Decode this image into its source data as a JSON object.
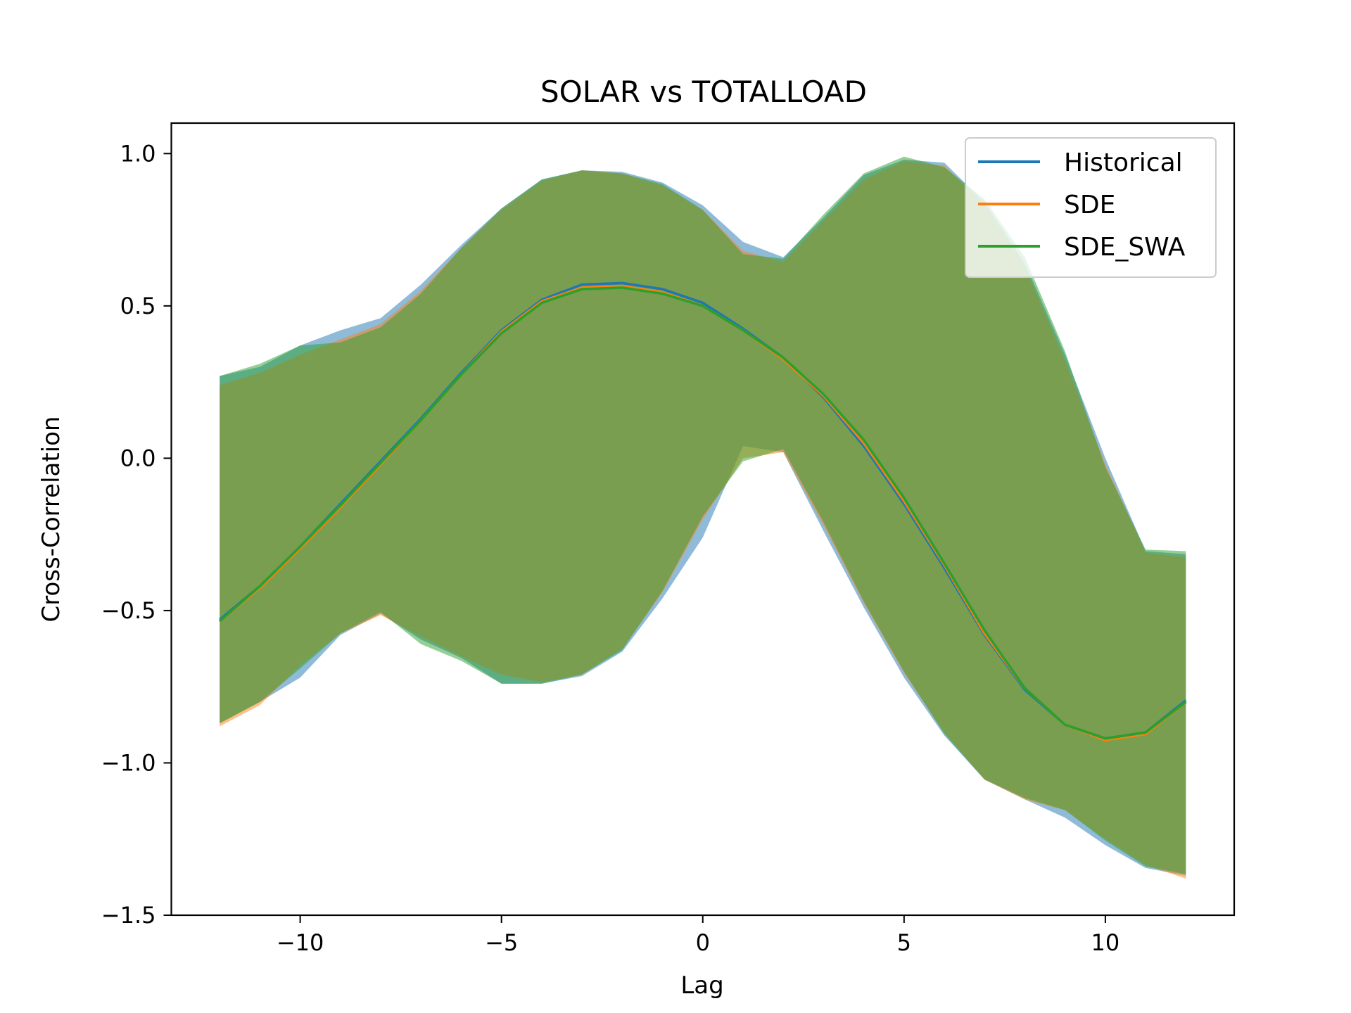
{
  "chart_data": {
    "type": "line",
    "title": "SOLAR vs TOTALLOAD",
    "xlabel": "Lag",
    "ylabel": "Cross-Correlation",
    "xlim": [
      -13.2,
      13.2
    ],
    "ylim": [
      -1.5,
      1.1
    ],
    "xticks": [
      -10,
      -5,
      0,
      5,
      10
    ],
    "xtick_labels": [
      "−10",
      "−5",
      "0",
      "5",
      "10"
    ],
    "yticks": [
      -1.5,
      -1.0,
      -0.5,
      0.0,
      0.5,
      1.0
    ],
    "ytick_labels": [
      "−1.5",
      "−1.0",
      "−0.5",
      "0.0",
      "0.5",
      "1.0"
    ],
    "grid": false,
    "legend_position": "top-right",
    "x": [
      -12,
      -11,
      -10,
      -9,
      -8,
      -7,
      -6,
      -5,
      -4,
      -3,
      -2,
      -1,
      0,
      1,
      2,
      3,
      4,
      5,
      6,
      7,
      8,
      9,
      10,
      11,
      12
    ],
    "series": [
      {
        "name": "Historical",
        "color": "#1f77b4",
        "mean": [
          -0.53,
          -0.42,
          -0.29,
          -0.15,
          -0.01,
          0.13,
          0.28,
          0.42,
          0.52,
          0.57,
          0.575,
          0.555,
          0.51,
          0.425,
          0.33,
          0.2,
          0.04,
          -0.15,
          -0.36,
          -0.58,
          -0.76,
          -0.875,
          -0.92,
          -0.9,
          -0.795
        ],
        "upper": [
          0.27,
          0.3,
          0.37,
          0.42,
          0.46,
          0.57,
          0.7,
          0.82,
          0.915,
          0.945,
          0.94,
          0.905,
          0.83,
          0.71,
          0.66,
          0.79,
          0.93,
          0.98,
          0.97,
          0.84,
          0.64,
          0.34,
          0.0,
          -0.305,
          -0.315
        ],
        "lower": [
          -0.87,
          -0.8,
          -0.72,
          -0.58,
          -0.51,
          -0.595,
          -0.655,
          -0.74,
          -0.74,
          -0.715,
          -0.635,
          -0.46,
          -0.26,
          0.04,
          0.02,
          -0.24,
          -0.49,
          -0.72,
          -0.91,
          -1.055,
          -1.12,
          -1.18,
          -1.27,
          -1.345,
          -1.37
        ]
      },
      {
        "name": "SDE",
        "color": "#ff7f0e",
        "mean": [
          -0.535,
          -0.425,
          -0.295,
          -0.16,
          -0.02,
          0.125,
          0.275,
          0.415,
          0.515,
          0.56,
          0.565,
          0.545,
          0.5,
          0.42,
          0.325,
          0.205,
          0.05,
          -0.14,
          -0.35,
          -0.575,
          -0.755,
          -0.875,
          -0.925,
          -0.905,
          -0.8
        ],
        "upper": [
          0.24,
          0.28,
          0.34,
          0.39,
          0.44,
          0.55,
          0.69,
          0.815,
          0.91,
          0.945,
          0.935,
          0.895,
          0.815,
          0.68,
          0.645,
          0.78,
          0.915,
          0.975,
          0.96,
          0.83,
          0.63,
          0.32,
          -0.02,
          -0.31,
          -0.325
        ],
        "lower": [
          -0.88,
          -0.81,
          -0.68,
          -0.575,
          -0.515,
          -0.585,
          -0.65,
          -0.71,
          -0.735,
          -0.71,
          -0.625,
          -0.44,
          -0.2,
          0.0,
          0.02,
          -0.22,
          -0.475,
          -0.705,
          -0.9,
          -1.055,
          -1.12,
          -1.155,
          -1.25,
          -1.335,
          -1.38
        ]
      },
      {
        "name": "SDE_SWA",
        "color": "#2ca02c",
        "mean": [
          -0.535,
          -0.42,
          -0.29,
          -0.155,
          -0.015,
          0.125,
          0.275,
          0.41,
          0.51,
          0.555,
          0.56,
          0.54,
          0.5,
          0.42,
          0.33,
          0.21,
          0.06,
          -0.13,
          -0.345,
          -0.565,
          -0.755,
          -0.875,
          -0.92,
          -0.9,
          -0.8
        ],
        "upper": [
          0.27,
          0.31,
          0.37,
          0.38,
          0.43,
          0.54,
          0.69,
          0.82,
          0.915,
          0.945,
          0.935,
          0.9,
          0.815,
          0.67,
          0.655,
          0.8,
          0.935,
          0.99,
          0.955,
          0.85,
          0.66,
          0.35,
          -0.03,
          -0.3,
          -0.305
        ],
        "lower": [
          -0.87,
          -0.8,
          -0.69,
          -0.575,
          -0.505,
          -0.61,
          -0.665,
          -0.74,
          -0.74,
          -0.71,
          -0.63,
          -0.435,
          -0.19,
          -0.01,
          0.03,
          -0.21,
          -0.47,
          -0.7,
          -0.905,
          -1.055,
          -1.115,
          -1.155,
          -1.255,
          -1.34,
          -1.365
        ]
      }
    ]
  }
}
